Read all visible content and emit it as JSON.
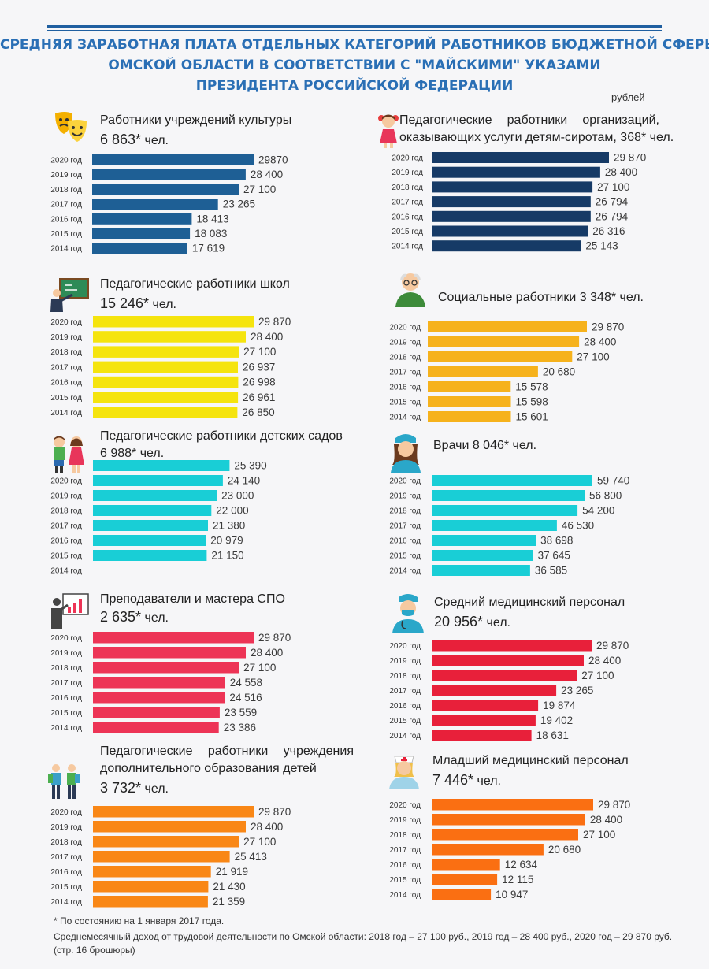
{
  "title": {
    "line1": "СРЕДНЯЯ ЗАРАБОТНАЯ ПЛАТА ОТДЕЛЬНЫХ КАТЕГОРИЙ РАБОТНИКОВ БЮДЖЕТНОЙ СФЕРЫ",
    "line2": "ОМСКОЙ ОБЛАСТИ В СООТВЕТСТВИИ С \"МАЙСКИМИ\" УКАЗАМИ",
    "line3": "ПРЕЗИДЕНТА РОССИЙСКОЙ ФЕДЕРАЦИИ"
  },
  "unit_label": "рублей",
  "panels": {
    "culture": {
      "line1": "Работники учреждений культуры",
      "count": "6 863*",
      "count_suffix": " чел."
    },
    "orphans": {
      "line1": "Педагогические работники организаций,",
      "line2": "оказывающих услуги детям-сиротам, 368* чел."
    },
    "schools": {
      "line1": "Педагогические работники школ",
      "count": "15 246*",
      "count_suffix": " чел."
    },
    "social": {
      "line1": "Социальные работники 3 348* чел."
    },
    "kindergartens": {
      "line1": "Педагогические работники детских садов",
      "line2": "6 988* чел."
    },
    "doctors": {
      "line1": "Врачи 8 046* чел."
    },
    "spo": {
      "line1": "Преподаватели и мастера СПО",
      "count": "2 635*",
      "count_suffix": " чел."
    },
    "nurses": {
      "line1": "Средний медицинский персонал",
      "count": " 20 956*",
      "count_suffix": " чел."
    },
    "additional": {
      "line1": "Педагогические работники учреждения",
      "line2": "дополнительного образования детей",
      "count": "3 732*",
      "count_suffix": " чел."
    },
    "junior_med": {
      "line1": "Младший медицинский персонал",
      "count": "7 446*",
      "count_suffix": " чел."
    }
  },
  "chart_data": [
    {
      "type": "bar",
      "orientation": "horizontal",
      "panel": "culture",
      "color": "#1e5f95",
      "categories": [
        "2020 год",
        "2019 год",
        "2018 год",
        "2017 год",
        "2016 год",
        "2015 год",
        "2014 год"
      ],
      "values": [
        29870,
        28400,
        27100,
        23265,
        18413,
        18083,
        17619
      ],
      "labels": [
        "29870",
        "28 400",
        "27 100",
        "23 265",
        "18 413",
        "18 083",
        "17 619"
      ]
    },
    {
      "type": "bar",
      "orientation": "horizontal",
      "panel": "orphans",
      "color": "#163a66",
      "categories": [
        "2020 год",
        "2019 год",
        "2018 год",
        "2017 год",
        "2016 год",
        "2015 год",
        "2014 год"
      ],
      "values": [
        29870,
        28400,
        27100,
        26794,
        26794,
        26316,
        25143
      ],
      "labels": [
        "29 870",
        "28 400",
        "27 100",
        "26 794",
        "26 794",
        "26 316",
        "25 143"
      ]
    },
    {
      "type": "bar",
      "orientation": "horizontal",
      "panel": "schools",
      "color": "#f5e40e",
      "categories": [
        "2020 год",
        "2019 год",
        "2018 год",
        "2017 год",
        "2016 год",
        "2015 год",
        "2014 год"
      ],
      "values": [
        29870,
        28400,
        27100,
        26937,
        26998,
        26961,
        26850
      ],
      "labels": [
        "29 870",
        "28 400",
        "27 100",
        "26 937",
        "26 998",
        "26 961",
        "26 850"
      ]
    },
    {
      "type": "bar",
      "orientation": "horizontal",
      "panel": "social",
      "color": "#f6b21c",
      "categories": [
        "2020 год",
        "2019 год",
        "2018 год",
        "2017 год",
        "2016 год",
        "2015 год",
        "2014 год"
      ],
      "values": [
        29870,
        28400,
        27100,
        20680,
        15578,
        15598,
        15601
      ],
      "labels": [
        "29 870",
        "28 400",
        "27 100",
        "20 680",
        "15 578",
        "15 598",
        "15 601"
      ]
    },
    {
      "type": "bar",
      "orientation": "horizontal",
      "panel": "kindergartens",
      "color": "#19ced6",
      "categories": [
        "",
        "2020 год",
        "2019 год",
        "2018 год",
        "2017 год",
        "2016 год",
        "2015 год",
        "2014 год"
      ],
      "values": [
        25390,
        24140,
        23000,
        22000,
        21380,
        20979,
        21150,
        null
      ],
      "labels": [
        "25 390",
        "24 140",
        "23 000",
        "22 000",
        "21 380",
        "20 979",
        "21 150",
        ""
      ]
    },
    {
      "type": "bar",
      "orientation": "horizontal",
      "panel": "doctors",
      "color": "#19ced6",
      "categories": [
        "2020 год",
        "2019 год",
        "2018 год",
        "2017 год",
        "2016 год",
        "2015 год",
        "2014 год"
      ],
      "values": [
        59740,
        56800,
        54200,
        46530,
        38698,
        37645,
        36585
      ],
      "labels": [
        "59 740",
        "56 800",
        "54 200",
        "46 530",
        "38 698",
        "37 645",
        "36 585"
      ]
    },
    {
      "type": "bar",
      "orientation": "horizontal",
      "panel": "spo",
      "color": "#ed3456",
      "categories": [
        "2020 год",
        "2019 год",
        "2018 год",
        "2017 год",
        "2016 год",
        "2015 год",
        "2014 год"
      ],
      "values": [
        29870,
        28400,
        27100,
        24558,
        24516,
        23559,
        23386
      ],
      "labels": [
        "29 870",
        "28 400",
        "27 100",
        "24 558",
        "24 516",
        "23 559",
        "23 386"
      ]
    },
    {
      "type": "bar",
      "orientation": "horizontal",
      "panel": "nurses",
      "color": "#e8203a",
      "categories": [
        "2020 год",
        "2019 год",
        "2018 год",
        "2017 год",
        "2016 год",
        "2015 год",
        "2014 год"
      ],
      "values": [
        29870,
        28400,
        27100,
        23265,
        19874,
        19402,
        18631
      ],
      "labels": [
        "29 870",
        "28 400",
        "27 100",
        "23 265",
        "19 874",
        "19 402",
        "18 631"
      ]
    },
    {
      "type": "bar",
      "orientation": "horizontal",
      "panel": "additional",
      "color": "#f98716",
      "categories": [
        "2020 год",
        "2019 год",
        "2018 год",
        "2017 год",
        "2016 год",
        "2015 год",
        "2014 год"
      ],
      "values": [
        29870,
        28400,
        27100,
        25413,
        21919,
        21430,
        21359
      ],
      "labels": [
        "29 870",
        "28 400",
        "27 100",
        "25 413",
        "21 919",
        "21 430",
        "21 359"
      ]
    },
    {
      "type": "bar",
      "orientation": "horizontal",
      "panel": "junior_med",
      "color": "#fa6f12",
      "categories": [
        "2020 год",
        "2019 год",
        "2018 год",
        "2017 год",
        "2016 год",
        "2015 год",
        "2014 год"
      ],
      "values": [
        29870,
        28400,
        27100,
        20680,
        12634,
        12115,
        10947
      ],
      "labels": [
        "29 870",
        "28 400",
        "27 100",
        "20 680",
        "12 634",
        "12 115",
        "10 947"
      ]
    }
  ],
  "footnote": "* По состоянию на 1 января 2017 года.",
  "income_note": "Среднемесячный доход от трудовой деятельности по Омской области: 2018 год – 27 100 руб., 2019 год – 28 400 руб., 2020 год – 29 870 руб.",
  "page_ref": "(стр. 16 брошюры)"
}
